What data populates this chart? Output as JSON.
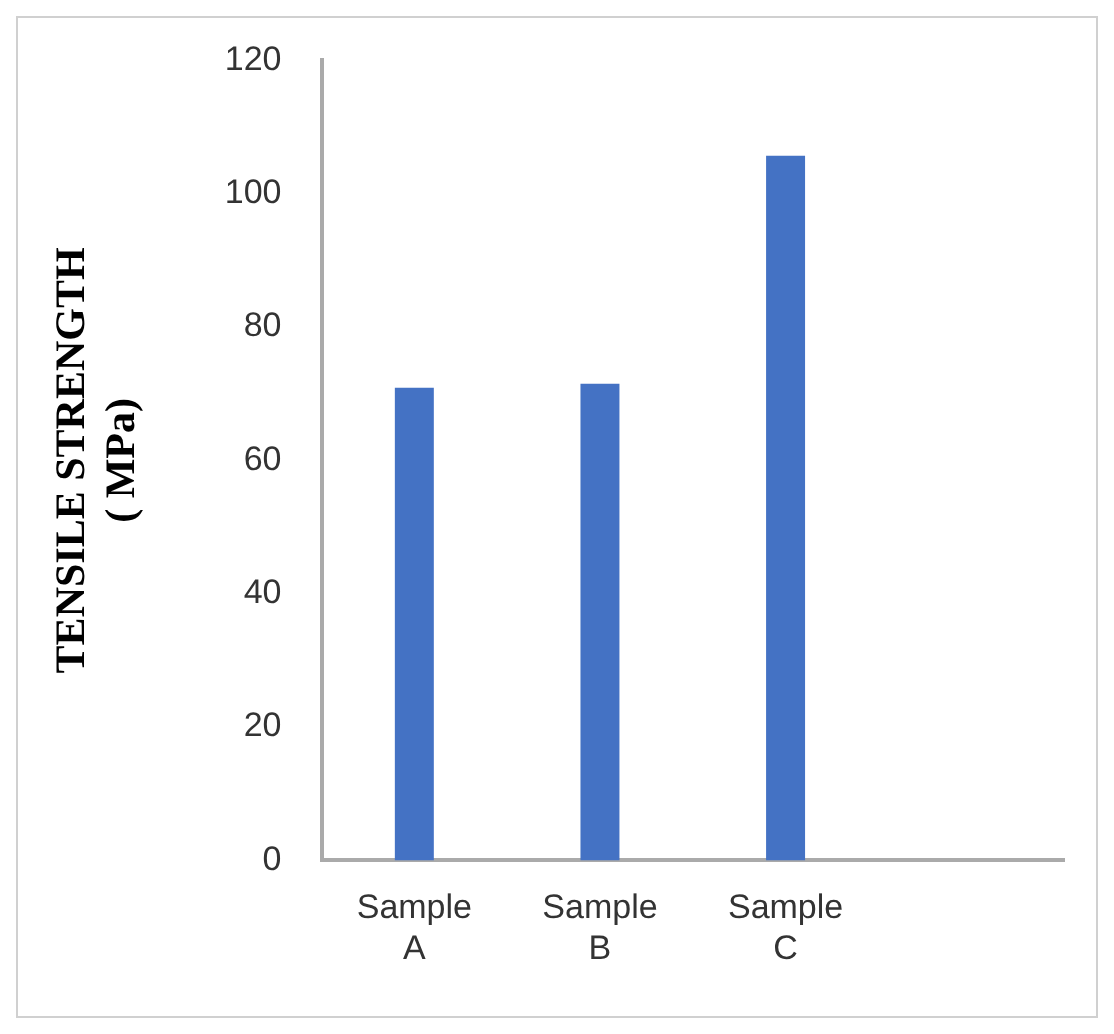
{
  "chart_data": {
    "type": "bar",
    "ylabel": "TENSILE STRENGTH ( MPa)",
    "categories": [
      "Sample A",
      "Sample B",
      "Sample C",
      null
    ],
    "values": [
      70.9,
      71.5,
      105.7,
      null
    ],
    "color": "#4472c4",
    "ylim": [
      0,
      120
    ],
    "yticks": [
      0,
      20,
      40,
      60,
      80,
      100,
      120
    ],
    "grid": false,
    "legend": false
  }
}
